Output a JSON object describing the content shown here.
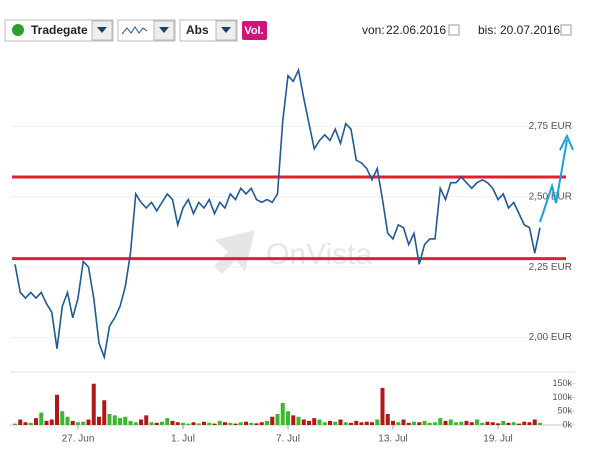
{
  "toolbar": {
    "exchange": "Tradegate",
    "mode": "Abs",
    "volume_button": "Vol.",
    "from_label": "von:",
    "from_date": "22.06.2016",
    "to_label": "bis:",
    "to_date": "20.07.2016"
  },
  "chart_data": {
    "type": "line",
    "watermark": "OnVista",
    "categories": [
      null,
      null,
      null,
      null,
      null,
      null,
      null,
      null,
      null,
      null,
      null,
      null,
      "27. Jun",
      null,
      null,
      null,
      null,
      null,
      null,
      null,
      null,
      null,
      null,
      null,
      null,
      null,
      null,
      null,
      null,
      null,
      null,
      null,
      "1. Jul",
      null,
      null,
      null,
      null,
      null,
      null,
      null,
      null,
      null,
      null,
      null,
      null,
      null,
      null,
      null,
      null,
      null,
      null,
      null,
      "7. Jul",
      null,
      null,
      null,
      null,
      null,
      null,
      null,
      null,
      null,
      null,
      null,
      null,
      null,
      null,
      null,
      null,
      null,
      null,
      null,
      "13. Jul",
      null,
      null,
      null,
      null,
      null,
      null,
      null,
      null,
      null,
      null,
      null,
      null,
      null,
      null,
      null,
      null,
      null,
      null,
      null,
      "19. Jul",
      null,
      null,
      null,
      null,
      null,
      null,
      null,
      null
    ],
    "series": [
      {
        "color": "#1f5a96",
        "values": [
          2.26,
          2.16,
          2.14,
          2.16,
          2.14,
          2.16,
          2.12,
          2.09,
          1.96,
          2.11,
          2.16,
          2.07,
          2.14,
          2.27,
          2.25,
          2.14,
          1.98,
          1.93,
          2.04,
          2.07,
          2.11,
          2.18,
          2.3,
          2.51,
          2.48,
          2.46,
          2.48,
          2.45,
          2.48,
          2.51,
          2.49,
          2.4,
          2.46,
          2.49,
          2.44,
          2.48,
          2.46,
          2.49,
          2.44,
          2.48,
          2.46,
          2.51,
          2.49,
          2.53,
          2.51,
          2.53,
          2.49,
          2.48,
          2.49,
          2.48,
          2.51,
          2.77,
          2.93,
          2.91,
          2.95,
          2.85,
          2.76,
          2.67,
          2.7,
          2.72,
          2.7,
          2.74,
          2.69,
          2.76,
          2.74,
          2.63,
          2.62,
          2.6,
          2.56,
          2.6,
          2.49,
          2.37,
          2.35,
          2.4,
          2.39,
          2.33,
          2.37,
          2.26,
          2.33,
          2.35,
          2.35,
          2.53,
          2.49,
          2.55,
          2.55,
          2.57,
          2.55,
          2.53,
          2.55,
          2.56,
          2.55,
          2.53,
          2.49,
          2.51,
          2.46,
          2.48,
          2.44,
          2.4,
          2.39,
          2.3,
          2.39
        ]
      }
    ],
    "ylim": [
      1.92,
      3.0
    ],
    "yticks": [
      {
        "value": 2.0,
        "label": "2,00 EUR"
      },
      {
        "value": 2.25,
        "label": "2,25 EUR"
      },
      {
        "value": 2.5,
        "label": "2,50 EUR"
      },
      {
        "value": 2.75,
        "label": "2,75 EUR"
      }
    ],
    "grid": true,
    "horizontal_lines": {
      "color": "#e02030",
      "values": [
        2.57,
        2.28
      ]
    },
    "volume": {
      "up_color": "#3cb82e",
      "down_color": "#b01818",
      "values": [
        5,
        20,
        10,
        8,
        25,
        45,
        15,
        20,
        110,
        50,
        30,
        15,
        10,
        12,
        20,
        150,
        30,
        90,
        40,
        35,
        25,
        30,
        15,
        10,
        20,
        35,
        10,
        8,
        12,
        25,
        15,
        10,
        8,
        5,
        10,
        6,
        12,
        8,
        5,
        15,
        10,
        8,
        5,
        10,
        12,
        8,
        6,
        10,
        15,
        30,
        40,
        80,
        50,
        35,
        30,
        20,
        15,
        25,
        20,
        10,
        15,
        12,
        20,
        10,
        8,
        15,
        10,
        12,
        10,
        20,
        135,
        40,
        15,
        10,
        20,
        8,
        12,
        10,
        15,
        8,
        10,
        25,
        15,
        20,
        10,
        12,
        15,
        10,
        20,
        8,
        12,
        10,
        6,
        15,
        8,
        10,
        5,
        12,
        10,
        20,
        8
      ],
      "ylim": [
        0,
        160
      ],
      "yticks": [
        {
          "value": 0,
          "label": "0k"
        },
        {
          "value": 50,
          "label": "50k"
        },
        {
          "value": 100,
          "label": "100k"
        },
        {
          "value": 150,
          "label": "150k"
        }
      ]
    }
  }
}
